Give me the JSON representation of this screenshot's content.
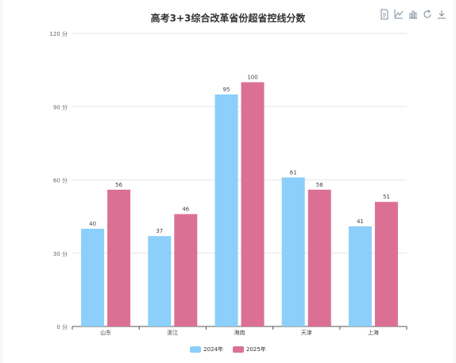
{
  "chart_data": {
    "type": "bar",
    "title": "高考3+3综合改革省份超省控线分数",
    "categories": [
      "山东",
      "浙江",
      "海南",
      "天津",
      "上海"
    ],
    "series": [
      {
        "name": "2024年",
        "values": [
          40,
          37,
          95,
          61,
          41
        ],
        "color": "#8bcffa"
      },
      {
        "name": "2025年",
        "values": [
          56,
          46,
          100,
          56,
          51
        ],
        "color": "#dc7094"
      }
    ],
    "ylim": [
      0,
      120
    ],
    "yticks": [
      0,
      30,
      60,
      90,
      120
    ],
    "ytick_labels": [
      "0 分",
      "30 分",
      "60 分",
      "90 分",
      "120 分"
    ],
    "grid": true,
    "legend_position": "bottom"
  },
  "toolbox": {
    "icons": [
      "data-view-icon",
      "line-chart-icon",
      "bar-chart-icon",
      "restore-icon",
      "download-icon"
    ]
  }
}
